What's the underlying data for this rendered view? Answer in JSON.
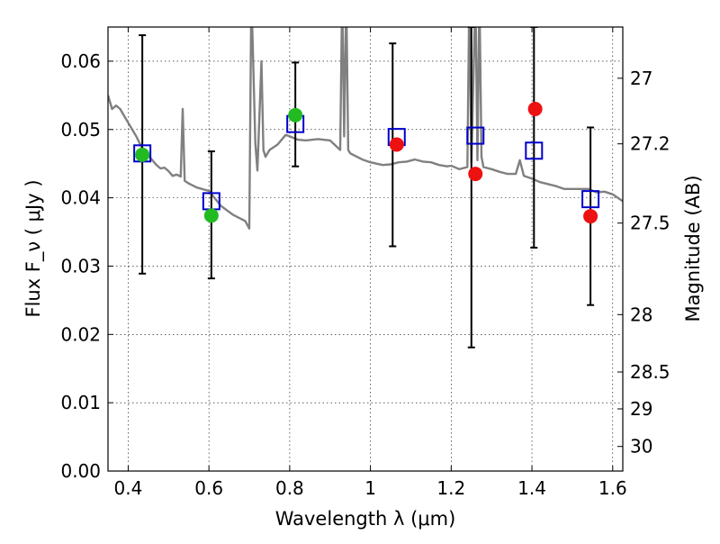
{
  "chart_data": {
    "type": "scatter",
    "title": "",
    "xlabel": "Wavelength  λ (μm)",
    "ylabel": "Flux  F_ν  ( μJy )",
    "y2label": "Magnitude (AB)",
    "xlim": [
      0.35,
      1.625
    ],
    "ylim": [
      0.0,
      0.065
    ],
    "grid": true,
    "x_ticks": [
      0.4,
      0.6,
      0.8,
      1.0,
      1.2,
      1.4,
      1.6
    ],
    "x_tick_labels": [
      "0.4",
      "0.6",
      "0.8",
      "1",
      "1.2",
      "1.4",
      "1.6"
    ],
    "y_ticks": [
      0.0,
      0.01,
      0.02,
      0.03,
      0.04,
      0.05,
      0.06
    ],
    "y_tick_labels": [
      "0.00",
      "0.01",
      "0.02",
      "0.03",
      "0.04",
      "0.05",
      "0.06"
    ],
    "y2_ticks": [
      {
        "flux": 0.0575,
        "label": "27"
      },
      {
        "flux": 0.0479,
        "label": "27.2"
      },
      {
        "flux": 0.0363,
        "label": "27.5"
      },
      {
        "flux": 0.0229,
        "label": "28"
      },
      {
        "flux": 0.0145,
        "label": "28.5"
      },
      {
        "flux": 0.0091,
        "label": "29"
      },
      {
        "flux": 0.0036,
        "label": "30"
      }
    ],
    "colors": {
      "model": "#808080",
      "boxes": "#0000cc",
      "observed_green": "#22bb22",
      "observed_red": "#ee1111",
      "errorbars": "#000000"
    },
    "series": [
      {
        "kind": "errorbar",
        "points": [
          {
            "x": 0.435,
            "y": 0.0463,
            "lo": 0.0289,
            "hi": 0.0638
          },
          {
            "x": 0.606,
            "y": 0.0374,
            "lo": 0.0282,
            "hi": 0.0468
          },
          {
            "x": 0.814,
            "y": 0.0521,
            "lo": 0.0446,
            "hi": 0.0598
          },
          {
            "x": 1.055,
            "y": 0.0478,
            "lo": 0.0329,
            "hi": 0.0626
          },
          {
            "x": 1.25,
            "y": 0.0435,
            "lo": 0.0181,
            "hi": 0.065
          },
          {
            "x": 1.405,
            "y": 0.053,
            "lo": 0.0327,
            "hi": 0.065
          },
          {
            "x": 1.545,
            "y": 0.0373,
            "lo": 0.0243,
            "hi": 0.0503
          }
        ]
      },
      {
        "kind": "observed",
        "points": [
          {
            "x": 0.435,
            "y": 0.0463,
            "color": "green"
          },
          {
            "x": 0.606,
            "y": 0.0374,
            "color": "green"
          },
          {
            "x": 0.814,
            "y": 0.0521,
            "color": "green"
          },
          {
            "x": 1.065,
            "y": 0.0478,
            "color": "red"
          },
          {
            "x": 1.26,
            "y": 0.0435,
            "color": "red"
          },
          {
            "x": 1.408,
            "y": 0.053,
            "color": "red"
          },
          {
            "x": 1.545,
            "y": 0.0373,
            "color": "red"
          }
        ]
      },
      {
        "kind": "model_boxes",
        "points": [
          {
            "x": 0.435,
            "y": 0.0465
          },
          {
            "x": 0.606,
            "y": 0.0395
          },
          {
            "x": 0.814,
            "y": 0.0508
          },
          {
            "x": 1.065,
            "y": 0.0489
          },
          {
            "x": 1.26,
            "y": 0.0491
          },
          {
            "x": 1.405,
            "y": 0.0469
          },
          {
            "x": 1.545,
            "y": 0.0398
          }
        ]
      },
      {
        "kind": "model_spectrum",
        "x": [
          0.35,
          0.36,
          0.37,
          0.38,
          0.39,
          0.4,
          0.41,
          0.42,
          0.43,
          0.44,
          0.45,
          0.46,
          0.47,
          0.48,
          0.49,
          0.5,
          0.51,
          0.52,
          0.53,
          0.535,
          0.54,
          0.55,
          0.57,
          0.6,
          0.63,
          0.66,
          0.69,
          0.7,
          0.705,
          0.715,
          0.72,
          0.73,
          0.735,
          0.74,
          0.75,
          0.77,
          0.79,
          0.8,
          0.82,
          0.84,
          0.87,
          0.9,
          0.925,
          0.93,
          0.935,
          0.94,
          0.945,
          0.95,
          0.96,
          0.98,
          1.0,
          1.03,
          1.05,
          1.07,
          1.09,
          1.11,
          1.13,
          1.15,
          1.17,
          1.19,
          1.2,
          1.22,
          1.24,
          1.245,
          1.25,
          1.26,
          1.265,
          1.27,
          1.275,
          1.28,
          1.3,
          1.32,
          1.34,
          1.36,
          1.37,
          1.38,
          1.4,
          1.42,
          1.44,
          1.46,
          1.48,
          1.5,
          1.52,
          1.54,
          1.56,
          1.58,
          1.6,
          1.625
        ],
        "y": [
          0.055,
          0.053,
          0.0535,
          0.053,
          0.052,
          0.051,
          0.05,
          0.049,
          0.0478,
          0.0466,
          0.0462,
          0.0455,
          0.0448,
          0.0443,
          0.0444,
          0.0439,
          0.0432,
          0.0434,
          0.0431,
          0.053,
          0.0425,
          0.0421,
          0.0415,
          0.041,
          0.0388,
          0.0375,
          0.0366,
          0.0355,
          0.07,
          0.048,
          0.044,
          0.06,
          0.047,
          0.046,
          0.047,
          0.0478,
          0.0492,
          0.049,
          0.0485,
          0.0484,
          0.0486,
          0.0484,
          0.047,
          0.07,
          0.049,
          0.07,
          0.047,
          0.0465,
          0.0462,
          0.0456,
          0.0452,
          0.0448,
          0.0449,
          0.0452,
          0.0453,
          0.0456,
          0.0453,
          0.0452,
          0.0448,
          0.0446,
          0.0447,
          0.0442,
          0.0445,
          0.07,
          0.0452,
          0.07,
          0.0455,
          0.07,
          0.046,
          0.0445,
          0.0442,
          0.0438,
          0.0435,
          0.0435,
          0.0455,
          0.0432,
          0.0428,
          0.0423,
          0.042,
          0.0417,
          0.0413,
          0.0413,
          0.0413,
          0.0413,
          0.0408,
          0.0409,
          0.0405,
          0.0395
        ]
      }
    ]
  }
}
